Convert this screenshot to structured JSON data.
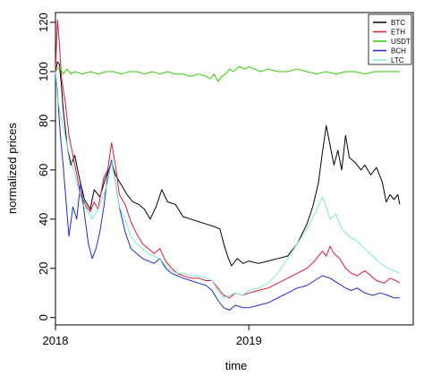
{
  "chart_data": {
    "type": "line",
    "title": "",
    "xlabel": "time",
    "ylabel": "normalized prices",
    "xlim": [
      2018.0,
      2019.85
    ],
    "ylim": [
      -3,
      124
    ],
    "x_ticks": [
      2018,
      2019
    ],
    "x_tick_labels": [
      "2018",
      "2019"
    ],
    "y_ticks": [
      0,
      20,
      40,
      60,
      80,
      100,
      120
    ],
    "y_tick_labels": [
      "0",
      "20",
      "40",
      "60",
      "80",
      "100",
      "120"
    ],
    "grid": false,
    "legend_position": "top-right",
    "series": [
      {
        "name": "BTC",
        "color": "#000000",
        "points": [
          [
            2018.0,
            100
          ],
          [
            2018.01,
            104
          ],
          [
            2018.02,
            103
          ],
          [
            2018.03,
            95
          ],
          [
            2018.04,
            85
          ],
          [
            2018.06,
            70
          ],
          [
            2018.08,
            62
          ],
          [
            2018.1,
            66
          ],
          [
            2018.12,
            58
          ],
          [
            2018.15,
            48
          ],
          [
            2018.18,
            44
          ],
          [
            2018.2,
            52
          ],
          [
            2018.23,
            49
          ],
          [
            2018.26,
            57
          ],
          [
            2018.29,
            63
          ],
          [
            2018.31,
            58
          ],
          [
            2018.34,
            54
          ],
          [
            2018.37,
            50
          ],
          [
            2018.4,
            47
          ],
          [
            2018.43,
            46
          ],
          [
            2018.46,
            44
          ],
          [
            2018.49,
            40
          ],
          [
            2018.52,
            45
          ],
          [
            2018.55,
            52
          ],
          [
            2018.58,
            47
          ],
          [
            2018.62,
            46
          ],
          [
            2018.66,
            41
          ],
          [
            2018.7,
            40
          ],
          [
            2018.74,
            39
          ],
          [
            2018.78,
            38
          ],
          [
            2018.82,
            37
          ],
          [
            2018.85,
            36
          ],
          [
            2018.87,
            30
          ],
          [
            2018.89,
            25
          ],
          [
            2018.91,
            21
          ],
          [
            2018.94,
            24
          ],
          [
            2018.97,
            22
          ],
          [
            2019.0,
            23
          ],
          [
            2019.05,
            22
          ],
          [
            2019.1,
            23
          ],
          [
            2019.15,
            24
          ],
          [
            2019.2,
            25
          ],
          [
            2019.25,
            30
          ],
          [
            2019.3,
            38
          ],
          [
            2019.33,
            45
          ],
          [
            2019.36,
            55
          ],
          [
            2019.38,
            67
          ],
          [
            2019.4,
            78
          ],
          [
            2019.42,
            70
          ],
          [
            2019.44,
            62
          ],
          [
            2019.46,
            68
          ],
          [
            2019.48,
            60
          ],
          [
            2019.5,
            74
          ],
          [
            2019.52,
            65
          ],
          [
            2019.55,
            63
          ],
          [
            2019.58,
            60
          ],
          [
            2019.6,
            62
          ],
          [
            2019.63,
            58
          ],
          [
            2019.66,
            61
          ],
          [
            2019.69,
            55
          ],
          [
            2019.71,
            47
          ],
          [
            2019.73,
            50
          ],
          [
            2019.75,
            48
          ],
          [
            2019.77,
            50
          ],
          [
            2019.78,
            46
          ]
        ]
      },
      {
        "name": "ETH",
        "color": "#df1a2e",
        "points": [
          [
            2018.0,
            100
          ],
          [
            2018.01,
            121
          ],
          [
            2018.02,
            112
          ],
          [
            2018.03,
            98
          ],
          [
            2018.05,
            88
          ],
          [
            2018.07,
            74
          ],
          [
            2018.09,
            66
          ],
          [
            2018.11,
            58
          ],
          [
            2018.13,
            50
          ],
          [
            2018.16,
            45
          ],
          [
            2018.18,
            43
          ],
          [
            2018.2,
            47
          ],
          [
            2018.22,
            44
          ],
          [
            2018.25,
            57
          ],
          [
            2018.27,
            60
          ],
          [
            2018.29,
            71
          ],
          [
            2018.31,
            62
          ],
          [
            2018.33,
            50
          ],
          [
            2018.36,
            46
          ],
          [
            2018.39,
            39
          ],
          [
            2018.42,
            34
          ],
          [
            2018.45,
            30
          ],
          [
            2018.48,
            28
          ],
          [
            2018.51,
            26
          ],
          [
            2018.54,
            28
          ],
          [
            2018.57,
            23
          ],
          [
            2018.6,
            20
          ],
          [
            2018.63,
            18
          ],
          [
            2018.66,
            17
          ],
          [
            2018.7,
            16
          ],
          [
            2018.74,
            16
          ],
          [
            2018.78,
            15
          ],
          [
            2018.81,
            15
          ],
          [
            2018.84,
            12
          ],
          [
            2018.87,
            9
          ],
          [
            2018.9,
            8
          ],
          [
            2018.93,
            10
          ],
          [
            2018.97,
            9
          ],
          [
            2019.0,
            10
          ],
          [
            2019.05,
            11
          ],
          [
            2019.1,
            12
          ],
          [
            2019.15,
            14
          ],
          [
            2019.2,
            16
          ],
          [
            2019.25,
            18
          ],
          [
            2019.3,
            20
          ],
          [
            2019.34,
            23
          ],
          [
            2019.38,
            27
          ],
          [
            2019.4,
            25
          ],
          [
            2019.42,
            29
          ],
          [
            2019.44,
            26
          ],
          [
            2019.47,
            24
          ],
          [
            2019.5,
            20
          ],
          [
            2019.53,
            18
          ],
          [
            2019.56,
            17
          ],
          [
            2019.6,
            19
          ],
          [
            2019.63,
            17
          ],
          [
            2019.66,
            15
          ],
          [
            2019.7,
            14
          ],
          [
            2019.73,
            16
          ],
          [
            2019.76,
            15
          ],
          [
            2019.78,
            14
          ]
        ]
      },
      {
        "name": "USDT",
        "color": "#33cc00",
        "points": [
          [
            2018.0,
            100
          ],
          [
            2018.02,
            102
          ],
          [
            2018.04,
            99
          ],
          [
            2018.06,
            101
          ],
          [
            2018.08,
            99
          ],
          [
            2018.1,
            100
          ],
          [
            2018.14,
            99
          ],
          [
            2018.18,
            100
          ],
          [
            2018.22,
            99
          ],
          [
            2018.26,
            100
          ],
          [
            2018.3,
            100
          ],
          [
            2018.34,
            99
          ],
          [
            2018.38,
            100
          ],
          [
            2018.42,
            100
          ],
          [
            2018.46,
            99
          ],
          [
            2018.5,
            100
          ],
          [
            2018.54,
            99
          ],
          [
            2018.58,
            100
          ],
          [
            2018.62,
            99
          ],
          [
            2018.66,
            99
          ],
          [
            2018.7,
            98
          ],
          [
            2018.74,
            99
          ],
          [
            2018.78,
            98
          ],
          [
            2018.8,
            97
          ],
          [
            2018.82,
            99
          ],
          [
            2018.84,
            96
          ],
          [
            2018.86,
            98
          ],
          [
            2018.88,
            99
          ],
          [
            2018.9,
            101
          ],
          [
            2018.92,
            100
          ],
          [
            2018.95,
            102
          ],
          [
            2018.98,
            101
          ],
          [
            2019.0,
            102
          ],
          [
            2019.03,
            101
          ],
          [
            2019.06,
            100
          ],
          [
            2019.1,
            101
          ],
          [
            2019.15,
            100
          ],
          [
            2019.2,
            100
          ],
          [
            2019.25,
            101
          ],
          [
            2019.3,
            100
          ],
          [
            2019.35,
            99
          ],
          [
            2019.4,
            100
          ],
          [
            2019.45,
            99
          ],
          [
            2019.5,
            100
          ],
          [
            2019.55,
            100
          ],
          [
            2019.6,
            99
          ],
          [
            2019.65,
            100
          ],
          [
            2019.7,
            100
          ],
          [
            2019.75,
            100
          ],
          [
            2019.78,
            100
          ]
        ]
      },
      {
        "name": "BCH",
        "color": "#1c2bd1",
        "points": [
          [
            2018.0,
            100
          ],
          [
            2018.01,
            92
          ],
          [
            2018.02,
            80
          ],
          [
            2018.03,
            70
          ],
          [
            2018.04,
            62
          ],
          [
            2018.05,
            52
          ],
          [
            2018.06,
            42
          ],
          [
            2018.07,
            33
          ],
          [
            2018.09,
            45
          ],
          [
            2018.11,
            40
          ],
          [
            2018.13,
            55
          ],
          [
            2018.15,
            42
          ],
          [
            2018.17,
            30
          ],
          [
            2018.19,
            24
          ],
          [
            2018.21,
            28
          ],
          [
            2018.23,
            35
          ],
          [
            2018.25,
            45
          ],
          [
            2018.27,
            58
          ],
          [
            2018.29,
            64
          ],
          [
            2018.31,
            55
          ],
          [
            2018.33,
            45
          ],
          [
            2018.36,
            35
          ],
          [
            2018.39,
            28
          ],
          [
            2018.42,
            26
          ],
          [
            2018.45,
            24
          ],
          [
            2018.48,
            23
          ],
          [
            2018.51,
            22
          ],
          [
            2018.54,
            24
          ],
          [
            2018.57,
            20
          ],
          [
            2018.6,
            18
          ],
          [
            2018.63,
            17
          ],
          [
            2018.66,
            16
          ],
          [
            2018.7,
            15
          ],
          [
            2018.74,
            14
          ],
          [
            2018.78,
            13
          ],
          [
            2018.81,
            11
          ],
          [
            2018.84,
            7
          ],
          [
            2018.87,
            4
          ],
          [
            2018.9,
            3
          ],
          [
            2018.93,
            5
          ],
          [
            2018.97,
            4
          ],
          [
            2019.0,
            4
          ],
          [
            2019.05,
            5
          ],
          [
            2019.1,
            6
          ],
          [
            2019.15,
            8
          ],
          [
            2019.2,
            10
          ],
          [
            2019.25,
            12
          ],
          [
            2019.3,
            13
          ],
          [
            2019.34,
            15
          ],
          [
            2019.38,
            17
          ],
          [
            2019.42,
            16
          ],
          [
            2019.46,
            14
          ],
          [
            2019.5,
            12
          ],
          [
            2019.53,
            11
          ],
          [
            2019.56,
            12
          ],
          [
            2019.6,
            10
          ],
          [
            2019.64,
            9
          ],
          [
            2019.68,
            10
          ],
          [
            2019.72,
            9
          ],
          [
            2019.75,
            8
          ],
          [
            2019.78,
            8
          ]
        ]
      },
      {
        "name": "LTC",
        "color": "#7fe8d6",
        "points": [
          [
            2018.0,
            100
          ],
          [
            2018.01,
            90
          ],
          [
            2018.02,
            85
          ],
          [
            2018.04,
            78
          ],
          [
            2018.06,
            70
          ],
          [
            2018.08,
            64
          ],
          [
            2018.1,
            58
          ],
          [
            2018.12,
            52
          ],
          [
            2018.14,
            46
          ],
          [
            2018.16,
            44
          ],
          [
            2018.19,
            40
          ],
          [
            2018.22,
            44
          ],
          [
            2018.25,
            50
          ],
          [
            2018.27,
            55
          ],
          [
            2018.29,
            63
          ],
          [
            2018.31,
            55
          ],
          [
            2018.33,
            45
          ],
          [
            2018.36,
            40
          ],
          [
            2018.39,
            33
          ],
          [
            2018.42,
            30
          ],
          [
            2018.45,
            28
          ],
          [
            2018.48,
            26
          ],
          [
            2018.51,
            25
          ],
          [
            2018.54,
            24
          ],
          [
            2018.57,
            21
          ],
          [
            2018.6,
            19
          ],
          [
            2018.63,
            18
          ],
          [
            2018.66,
            18
          ],
          [
            2018.7,
            17
          ],
          [
            2018.74,
            17
          ],
          [
            2018.78,
            16
          ],
          [
            2018.81,
            15
          ],
          [
            2018.84,
            11
          ],
          [
            2018.87,
            8
          ],
          [
            2018.9,
            9
          ],
          [
            2018.93,
            10
          ],
          [
            2018.97,
            9
          ],
          [
            2019.0,
            11
          ],
          [
            2019.05,
            12
          ],
          [
            2019.1,
            14
          ],
          [
            2019.15,
            18
          ],
          [
            2019.2,
            24
          ],
          [
            2019.25,
            30
          ],
          [
            2019.3,
            36
          ],
          [
            2019.34,
            42
          ],
          [
            2019.38,
            49
          ],
          [
            2019.4,
            45
          ],
          [
            2019.42,
            40
          ],
          [
            2019.45,
            42
          ],
          [
            2019.48,
            36
          ],
          [
            2019.52,
            33
          ],
          [
            2019.56,
            31
          ],
          [
            2019.6,
            28
          ],
          [
            2019.64,
            25
          ],
          [
            2019.68,
            22
          ],
          [
            2019.72,
            20
          ],
          [
            2019.75,
            19
          ],
          [
            2019.78,
            18
          ]
        ]
      }
    ]
  }
}
